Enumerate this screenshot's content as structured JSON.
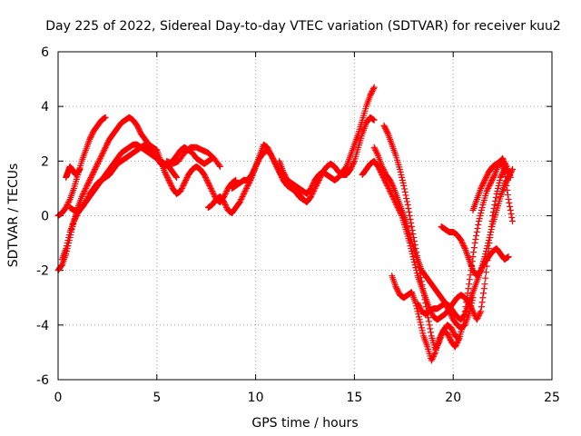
{
  "chart_data": {
    "type": "scatter",
    "title": "Day 225 of 2022, Sidereal Day-to-day VTEC variation (SDTVAR) for receiver kuu2",
    "xlabel": "GPS time / hours",
    "ylabel": "SDTVAR / TECUs",
    "xlim": [
      0,
      25
    ],
    "ylim": [
      -6,
      6
    ],
    "x_ticks": [
      "0",
      "5",
      "10",
      "15",
      "20",
      "25"
    ],
    "y_ticks": [
      "-6",
      "-4",
      "-2",
      "0",
      "2",
      "4",
      "6"
    ],
    "grid": true,
    "marker": "plus",
    "marker_color": "#ff0000",
    "series": [
      {
        "x": [
          0.0,
          0.2,
          0.4,
          0.6,
          0.8,
          1.0,
          1.2,
          1.4,
          1.6,
          1.8,
          2.0,
          2.2,
          2.4
        ],
        "y": [
          0.0,
          0.1,
          0.3,
          0.6,
          1.0,
          1.5,
          2.0,
          2.4,
          2.8,
          3.1,
          3.3,
          3.5,
          3.6
        ]
      },
      {
        "x": [
          0.0,
          0.2,
          0.4,
          0.6,
          0.8,
          1.0,
          1.2,
          1.4,
          1.6,
          1.8,
          2.0,
          2.2,
          2.4,
          2.6,
          2.8,
          3.0,
          3.2,
          3.4,
          3.6,
          3.8,
          4.0,
          4.2,
          4.4,
          4.6,
          4.8,
          5.0
        ],
        "y": [
          -2.0,
          -1.8,
          -1.4,
          -0.8,
          -0.2,
          0.3,
          0.7,
          1.0,
          1.3,
          1.6,
          1.9,
          2.2,
          2.5,
          2.8,
          3.0,
          3.2,
          3.4,
          3.5,
          3.6,
          3.5,
          3.3,
          3.0,
          2.8,
          2.6,
          2.5,
          2.4
        ]
      },
      {
        "x": [
          0.2,
          0.4,
          0.6,
          0.8,
          1.0,
          1.2,
          1.4,
          1.6,
          1.8,
          2.0,
          2.2,
          2.4,
          2.6,
          2.8,
          3.0,
          3.2,
          3.4,
          3.6,
          3.8,
          4.0,
          4.2,
          4.4,
          4.6,
          4.8,
          5.0,
          5.2,
          5.4,
          5.6,
          5.8,
          6.0
        ],
        "y": [
          -1.6,
          -1.2,
          -0.6,
          -0.2,
          0.1,
          0.3,
          0.5,
          0.7,
          0.9,
          1.1,
          1.3,
          1.5,
          1.7,
          1.9,
          2.1,
          2.3,
          2.4,
          2.5,
          2.6,
          2.6,
          2.5,
          2.4,
          2.3,
          2.2,
          2.1,
          2.0,
          1.9,
          1.8,
          1.6,
          1.4
        ]
      },
      {
        "x": [
          0.4,
          0.5,
          0.6,
          0.7,
          0.8,
          0.9,
          1.0,
          1.1
        ],
        "y": [
          1.4,
          1.6,
          1.8,
          1.7,
          1.6,
          1.5,
          1.6,
          1.7
        ]
      },
      {
        "x": [
          0.6,
          0.8,
          1.0,
          1.2,
          1.4,
          1.6,
          1.8,
          2.0,
          2.2,
          2.4,
          2.6,
          2.8,
          3.0,
          3.2,
          3.4,
          3.6,
          3.8,
          4.0,
          4.2,
          4.4,
          4.6,
          4.8,
          5.0,
          5.2,
          5.4,
          5.6,
          5.8,
          6.0,
          6.2,
          6.4,
          6.6,
          6.8,
          7.0,
          7.2,
          7.4,
          7.6,
          7.8
        ],
        "y": [
          0.3,
          0.2,
          0.2,
          0.3,
          0.5,
          0.8,
          1.0,
          1.2,
          1.3,
          1.4,
          1.5,
          1.7,
          1.9,
          2.0,
          2.1,
          2.2,
          2.3,
          2.4,
          2.5,
          2.6,
          2.5,
          2.3,
          2.1,
          1.9,
          1.8,
          1.9,
          2.0,
          2.2,
          2.4,
          2.5,
          2.4,
          2.3,
          2.1,
          2.0,
          1.9,
          2.0,
          2.1
        ]
      },
      {
        "x": [
          5.0,
          5.2,
          5.4,
          5.6,
          5.8,
          6.0,
          6.2,
          6.4,
          6.6,
          6.8,
          7.0,
          7.2,
          7.4,
          7.6,
          7.8,
          8.0,
          8.2,
          8.4,
          8.6,
          8.8,
          9.0
        ],
        "y": [
          2.4,
          2.0,
          1.6,
          1.3,
          1.0,
          0.8,
          0.9,
          1.2,
          1.5,
          1.7,
          1.8,
          1.7,
          1.5,
          1.2,
          0.9,
          0.6,
          0.5,
          0.7,
          1.0,
          1.2,
          1.3
        ]
      },
      {
        "x": [
          5.5,
          5.8,
          6.1,
          6.4,
          6.7,
          7.0,
          7.3,
          7.6,
          7.9,
          8.2
        ],
        "y": [
          2.0,
          1.9,
          2.0,
          2.3,
          2.5,
          2.5,
          2.4,
          2.3,
          2.1,
          1.8
        ]
      },
      {
        "x": [
          7.6,
          7.8,
          8.0,
          8.2,
          8.4,
          8.6,
          8.8,
          9.0,
          9.2,
          9.4,
          9.6,
          9.8,
          10.0,
          10.2,
          10.4,
          10.6,
          10.8,
          11.0,
          11.2,
          11.4,
          11.6,
          11.8,
          12.0,
          12.2,
          12.4,
          12.6,
          12.8,
          13.0,
          13.2,
          13.4,
          13.6,
          13.8,
          14.0,
          14.2,
          14.4,
          14.6,
          14.8,
          15.0,
          15.2,
          15.4,
          15.6,
          15.8,
          16.0
        ],
        "y": [
          0.3,
          0.4,
          0.6,
          0.7,
          0.5,
          0.2,
          0.1,
          0.3,
          0.5,
          0.8,
          1.1,
          1.4,
          1.8,
          2.1,
          2.3,
          2.4,
          2.2,
          1.9,
          1.6,
          1.3,
          1.1,
          1.0,
          0.9,
          0.8,
          0.6,
          0.5,
          0.7,
          1.0,
          1.3,
          1.6,
          1.8,
          1.9,
          1.8,
          1.6,
          1.5,
          1.5,
          1.7,
          2.0,
          2.5,
          3.0,
          3.4,
          3.6,
          3.5
        ]
      },
      {
        "x": [
          8.8,
          9.0,
          9.2,
          9.4,
          9.6,
          9.8,
          10.0,
          10.2,
          10.4,
          10.6,
          10.8,
          11.0,
          11.2,
          11.4,
          11.6,
          11.8,
          12.0,
          12.2,
          12.4,
          12.6,
          12.8,
          13.0,
          13.2,
          13.4,
          13.6,
          13.8,
          14.0,
          14.2,
          14.4,
          14.6,
          14.8,
          15.0,
          15.2,
          15.4,
          15.6,
          15.8,
          16.0
        ],
        "y": [
          1.0,
          1.1,
          1.2,
          1.3,
          1.3,
          1.5,
          1.8,
          2.2,
          2.6,
          2.5,
          2.2,
          1.9,
          1.6,
          1.4,
          1.3,
          1.2,
          1.1,
          1.0,
          0.9,
          0.8,
          1.0,
          1.3,
          1.5,
          1.6,
          1.5,
          1.4,
          1.3,
          1.4,
          1.6,
          1.8,
          2.2,
          2.6,
          3.0,
          3.5,
          4.0,
          4.4,
          4.7
        ]
      },
      {
        "x": [
          11.2,
          11.4,
          11.6,
          11.8,
          12.0,
          12.2,
          12.4
        ],
        "y": [
          2.0,
          1.6,
          1.3,
          1.1,
          0.9,
          0.7,
          0.6
        ]
      },
      {
        "x": [
          15.4,
          15.6,
          15.8,
          16.0,
          16.2,
          16.4,
          16.6,
          16.8,
          17.0,
          17.2,
          17.4,
          17.6,
          17.8,
          18.0,
          18.2,
          18.4,
          18.6,
          18.8,
          19.0,
          19.2,
          19.4,
          19.6,
          19.8,
          20.0,
          20.2,
          20.4,
          20.6,
          20.8,
          21.0,
          21.2,
          21.4,
          21.6,
          21.8,
          22.0,
          22.2,
          22.4,
          22.6,
          22.8
        ],
        "y": [
          1.5,
          1.7,
          1.9,
          2.0,
          1.8,
          1.5,
          1.2,
          0.9,
          0.6,
          0.3,
          0.0,
          -0.5,
          -1.0,
          -1.6,
          -2.2,
          -2.6,
          -3.0,
          -3.4,
          -3.7,
          -3.8,
          -3.7,
          -3.6,
          -3.4,
          -3.2,
          -3.0,
          -2.9,
          -3.0,
          -3.2,
          -3.5,
          -3.8,
          -3.5,
          -2.5,
          -1.2,
          0.0,
          0.8,
          1.4,
          1.7,
          1.6
        ]
      },
      {
        "x": [
          16.0,
          16.2,
          16.4,
          16.6,
          16.8,
          17.0,
          17.2,
          17.4,
          17.6,
          17.8,
          18.0,
          18.2,
          18.4,
          18.6,
          18.8,
          19.0,
          19.2,
          19.4,
          19.6,
          19.8,
          20.0,
          20.2,
          20.4,
          20.6,
          20.8,
          21.0
        ],
        "y": [
          2.5,
          2.2,
          1.8,
          1.5,
          1.3,
          1.0,
          0.6,
          0.2,
          -0.2,
          -0.7,
          -1.2,
          -1.6,
          -2.0,
          -2.2,
          -2.4,
          -2.6,
          -2.8,
          -3.0,
          -3.2,
          -3.5,
          -3.8,
          -4.0,
          -4.1,
          -4.0,
          -3.6,
          -3.0
        ]
      },
      {
        "x": [
          16.5,
          16.7,
          16.9,
          17.1,
          17.3,
          17.5,
          17.7,
          17.9,
          18.1,
          18.3,
          18.5,
          18.7,
          18.9,
          19.1,
          19.3,
          19.5,
          19.7,
          19.9,
          20.1,
          20.3,
          20.5,
          20.7,
          20.9,
          21.1,
          21.3,
          21.5,
          21.7,
          21.9,
          22.1,
          22.3,
          22.5,
          22.7,
          22.9
        ],
        "y": [
          3.3,
          3.0,
          2.6,
          2.2,
          1.7,
          1.1,
          0.4,
          -0.4,
          -1.2,
          -2.0,
          -2.8,
          -3.6,
          -4.4,
          -4.9,
          -4.6,
          -4.2,
          -4.0,
          -4.1,
          -4.4,
          -4.5,
          -4.0,
          -3.0,
          -2.0,
          -1.0,
          -0.2,
          0.4,
          0.9,
          1.2,
          1.5,
          1.9,
          2.1,
          1.8,
          1.4
        ]
      },
      {
        "x": [
          16.9,
          17.1,
          17.3,
          17.5,
          17.7,
          17.9,
          18.1,
          18.3,
          18.5,
          18.7,
          18.9,
          19.1,
          19.3,
          19.5,
          19.7,
          19.9,
          20.1,
          20.3
        ],
        "y": [
          -2.2,
          -2.6,
          -2.9,
          -3.0,
          -2.9,
          -2.8,
          -3.2,
          -3.8,
          -4.4,
          -4.8,
          -5.3,
          -5.0,
          -4.5,
          -4.2,
          -4.3,
          -4.6,
          -4.8,
          -4.5
        ]
      },
      {
        "x": [
          18.2,
          18.4,
          18.6,
          18.8,
          19.0,
          19.2,
          19.4,
          19.6,
          19.8,
          20.0,
          20.2,
          20.4,
          20.6,
          20.8,
          21.0,
          21.2,
          21.4,
          21.6,
          21.8,
          22.0,
          22.2,
          22.4,
          22.6,
          22.8
        ],
        "y": [
          -3.2,
          -3.5,
          -3.6,
          -3.5,
          -3.4,
          -3.4,
          -3.3,
          -3.2,
          -3.3,
          -3.5,
          -3.7,
          -3.8,
          -3.6,
          -3.2,
          -2.8,
          -2.4,
          -2.0,
          -1.7,
          -1.5,
          -1.3,
          -1.2,
          -1.4,
          -1.6,
          -1.5
        ]
      },
      {
        "x": [
          19.4,
          19.6,
          19.8,
          20.0,
          20.2,
          20.4,
          20.6,
          20.8,
          21.0,
          21.2,
          21.4,
          21.6,
          21.8,
          22.0,
          22.2,
          22.4,
          22.6,
          22.8,
          23.0
        ],
        "y": [
          -0.4,
          -0.5,
          -0.6,
          -0.6,
          -0.7,
          -0.9,
          -1.2,
          -1.6,
          -2.0,
          -2.2,
          -2.0,
          -1.5,
          -0.9,
          -0.3,
          0.2,
          0.7,
          1.1,
          1.4,
          1.7
        ]
      },
      {
        "x": [
          21.0,
          21.2,
          21.4,
          21.6,
          21.8,
          22.0,
          22.2,
          22.4,
          22.6,
          22.8,
          23.0
        ],
        "y": [
          0.2,
          0.6,
          1.0,
          1.3,
          1.6,
          1.8,
          1.9,
          2.0,
          1.6,
          0.6,
          -0.2
        ]
      }
    ]
  }
}
